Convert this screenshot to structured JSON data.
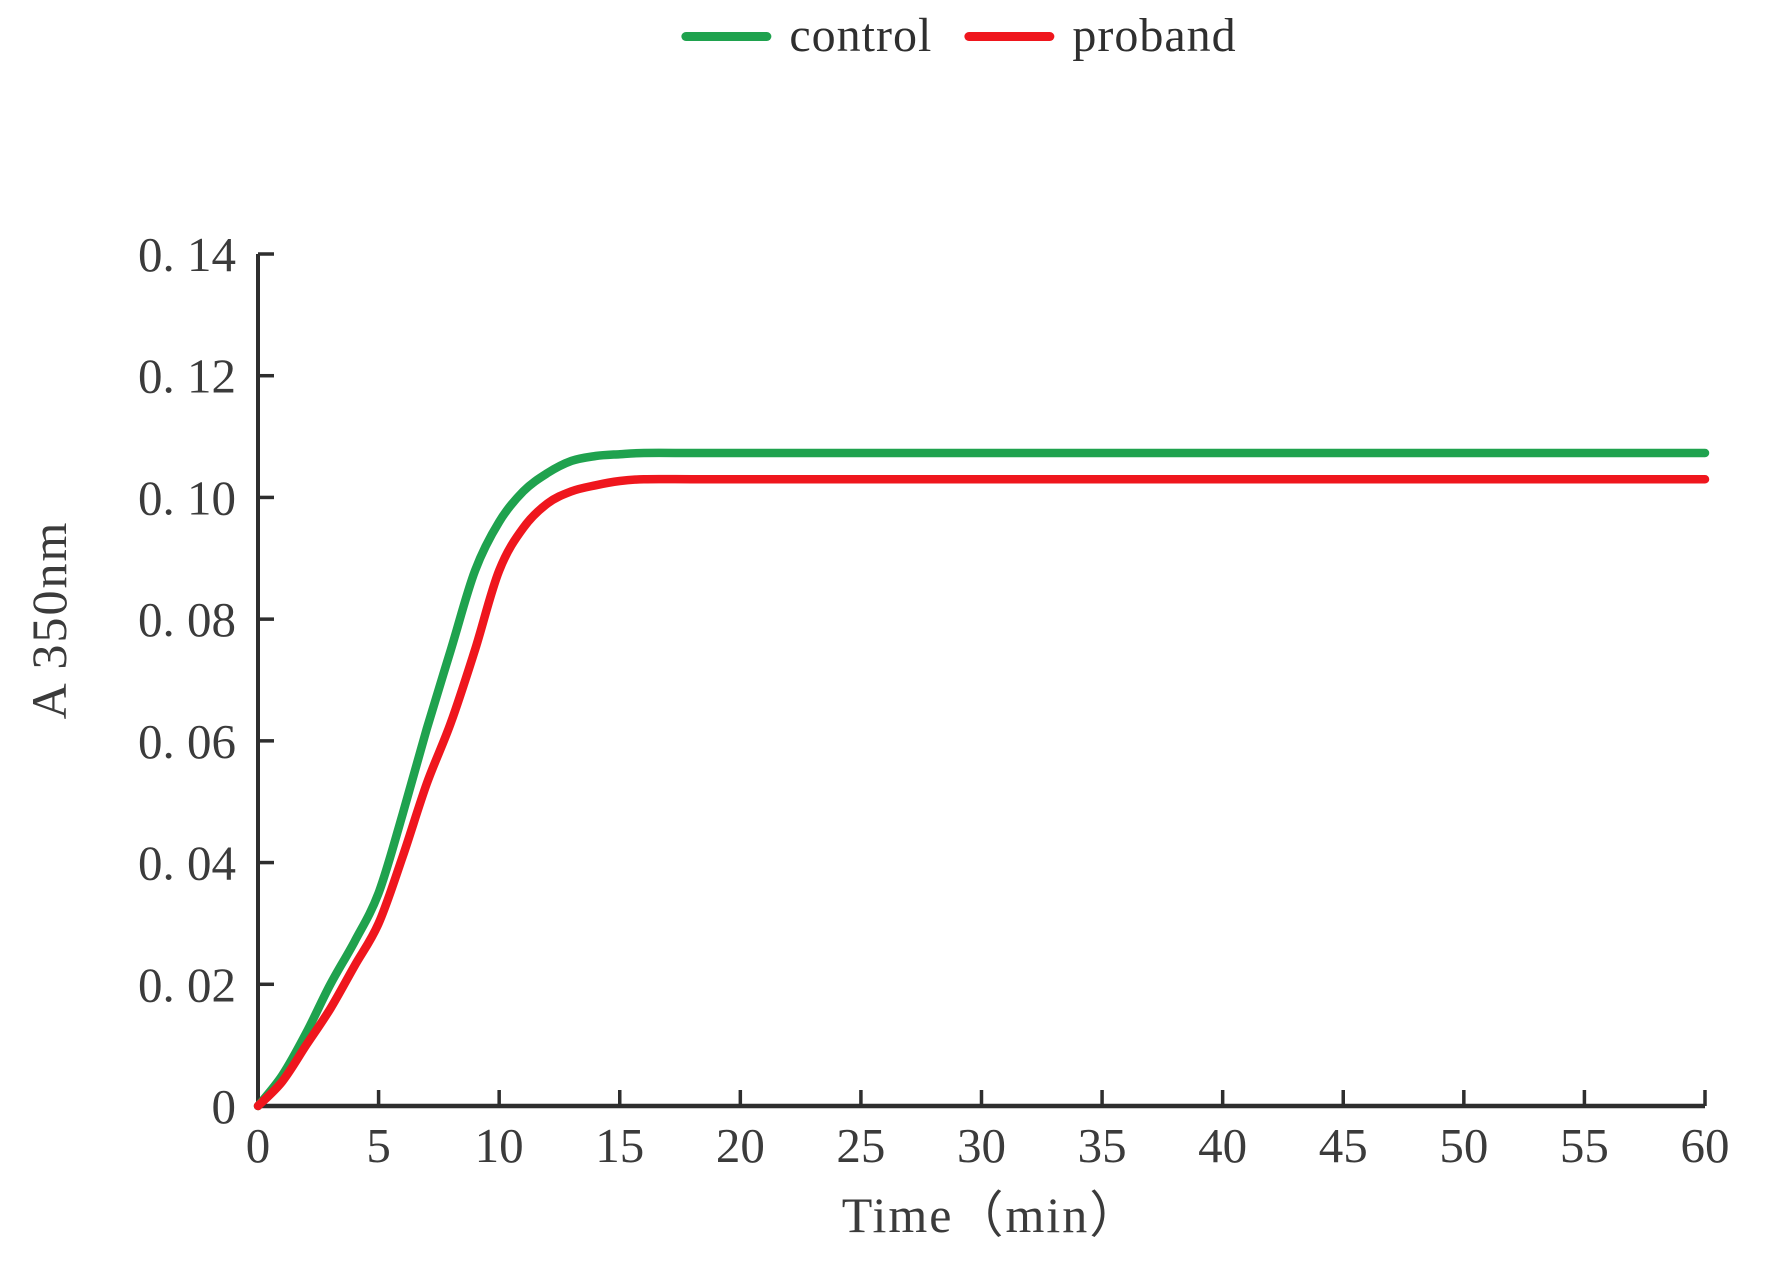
{
  "chart_data": {
    "type": "line",
    "title": "",
    "xlabel": "Time（min）",
    "ylabel": "A 350nm",
    "xlim": [
      0,
      60
    ],
    "ylim": [
      0,
      0.14
    ],
    "grid": false,
    "legend_position": "top-center",
    "background": "#ffffff",
    "axis_color": "#2e2e2e",
    "text_color": "#3b3b3b",
    "x_ticks": [
      0,
      5,
      10,
      15,
      20,
      25,
      30,
      35,
      40,
      45,
      50,
      55,
      60
    ],
    "x_tick_labels": [
      "0",
      "5",
      "10",
      "15",
      "20",
      "25",
      "30",
      "35",
      "40",
      "45",
      "50",
      "55",
      "60"
    ],
    "y_ticks": [
      0,
      0.02,
      0.04,
      0.06,
      0.08,
      0.1,
      0.12,
      0.14
    ],
    "y_tick_labels": [
      "0",
      "0. 02",
      "0. 04",
      "0. 06",
      "0. 08",
      "0. 10",
      "0. 12",
      "0. 14"
    ],
    "series": [
      {
        "name": "control",
        "color": "#1fa24e",
        "x": [
          0,
          1,
          2,
          3,
          4,
          5,
          6,
          7,
          8,
          9,
          10,
          11,
          12,
          13,
          14,
          15,
          16,
          18,
          20,
          25,
          30,
          35,
          40,
          45,
          50,
          55,
          60
        ],
        "y": [
          0,
          0.005,
          0.012,
          0.02,
          0.027,
          0.035,
          0.048,
          0.062,
          0.075,
          0.088,
          0.096,
          0.101,
          0.104,
          0.106,
          0.1068,
          0.1071,
          0.1073,
          0.1073,
          0.1073,
          0.1073,
          0.1073,
          0.1073,
          0.1073,
          0.1073,
          0.1073,
          0.1073,
          0.1073
        ]
      },
      {
        "name": "proband",
        "color": "#ef161d",
        "x": [
          0,
          1,
          2,
          3,
          4,
          5,
          6,
          7,
          8,
          9,
          10,
          11,
          12,
          13,
          14,
          15,
          16,
          18,
          20,
          25,
          30,
          35,
          40,
          45,
          50,
          55,
          60
        ],
        "y": [
          0,
          0.004,
          0.01,
          0.016,
          0.023,
          0.03,
          0.041,
          0.053,
          0.063,
          0.075,
          0.088,
          0.095,
          0.099,
          0.101,
          0.102,
          0.1027,
          0.103,
          0.103,
          0.103,
          0.103,
          0.103,
          0.103,
          0.103,
          0.103,
          0.103,
          0.103,
          0.103
        ]
      }
    ]
  }
}
